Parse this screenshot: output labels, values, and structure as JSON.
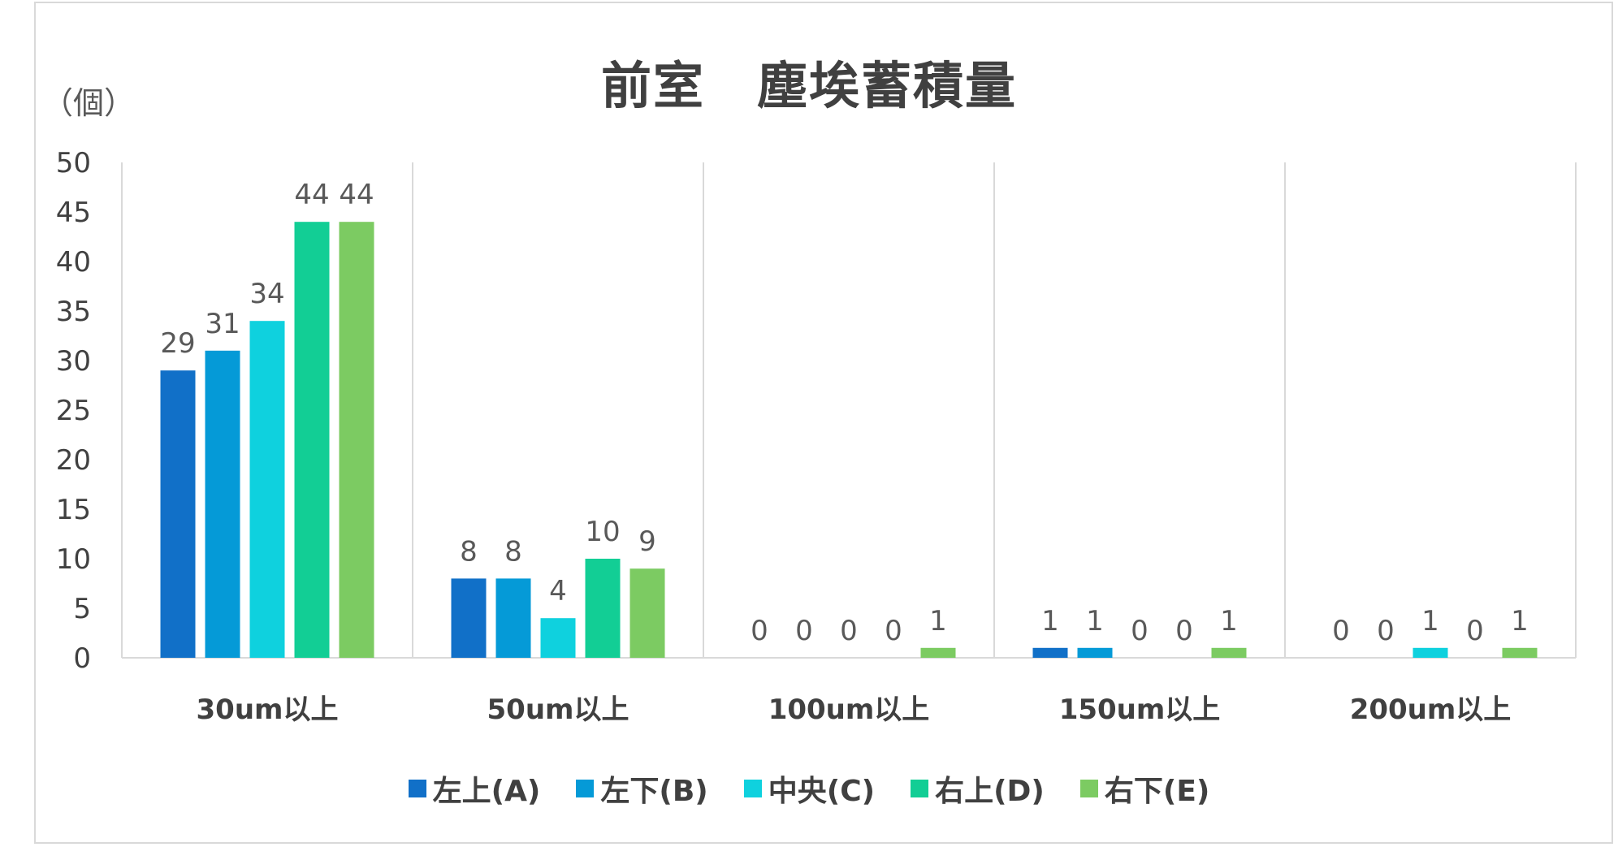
{
  "chart_data": {
    "type": "bar",
    "title": "前室　塵埃蓄積量",
    "ylabel": "（個）",
    "xlabel": "",
    "ylim": [
      0,
      50
    ],
    "yticks": [
      0,
      5,
      10,
      15,
      20,
      25,
      30,
      35,
      40,
      45,
      50
    ],
    "categories": [
      "30um以上",
      "50um以上",
      "100um以上",
      "150um以上",
      "200um以上"
    ],
    "series": [
      {
        "name": "左上(A)",
        "color": "#1170c8",
        "values": [
          29,
          8,
          0,
          1,
          0
        ]
      },
      {
        "name": "左下(B)",
        "color": "#059ad7",
        "values": [
          31,
          8,
          0,
          1,
          0
        ]
      },
      {
        "name": "中央(C)",
        "color": "#0fd1de",
        "values": [
          34,
          4,
          0,
          0,
          1
        ]
      },
      {
        "name": "右上(D)",
        "color": "#12ce95",
        "values": [
          44,
          10,
          0,
          0,
          0
        ]
      },
      {
        "name": "右下(E)",
        "color": "#7ccb62",
        "values": [
          44,
          9,
          1,
          1,
          1
        ]
      }
    ],
    "grid": "vertical separators",
    "legend": "bottom"
  }
}
